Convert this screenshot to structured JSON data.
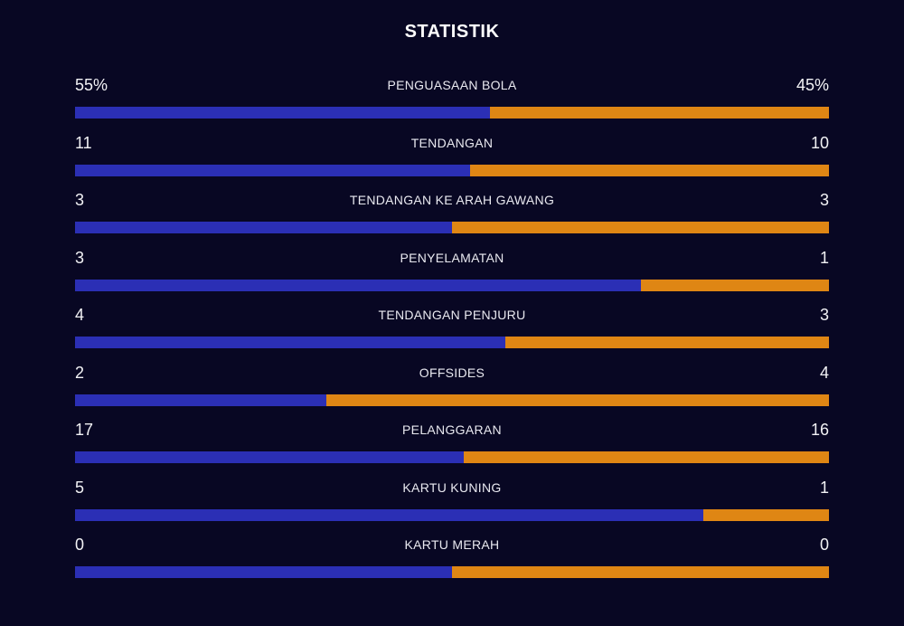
{
  "title": "STATISTIK",
  "colors": {
    "background": "#080723",
    "home_bar": "#2b2fb5",
    "away_bar": "#df8614"
  },
  "stats": [
    {
      "label": "PENGUASAAN BOLA",
      "home": "55%",
      "away": "45%",
      "home_share": 0.55
    },
    {
      "label": "TENDANGAN",
      "home": "11",
      "away": "10",
      "home_share": 0.524
    },
    {
      "label": "TENDANGAN KE ARAH GAWANG",
      "home": "3",
      "away": "3",
      "home_share": 0.5
    },
    {
      "label": "PENYELAMATAN",
      "home": "3",
      "away": "1",
      "home_share": 0.75
    },
    {
      "label": "TENDANGAN PENJURU",
      "home": "4",
      "away": "3",
      "home_share": 0.571
    },
    {
      "label": "OFFSIDES",
      "home": "2",
      "away": "4",
      "home_share": 0.333
    },
    {
      "label": "PELANGGARAN",
      "home": "17",
      "away": "16",
      "home_share": 0.515
    },
    {
      "label": "KARTU KUNING",
      "home": "5",
      "away": "1",
      "home_share": 0.833
    },
    {
      "label": "KARTU MERAH",
      "home": "0",
      "away": "0",
      "home_share": 0.5
    }
  ]
}
